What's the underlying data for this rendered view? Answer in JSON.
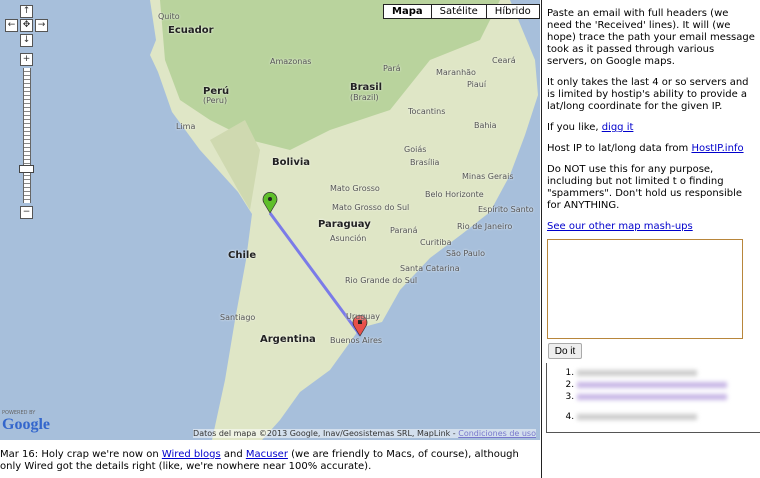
{
  "map": {
    "type_buttons": [
      "Mapa",
      "Satélite",
      "Híbrido"
    ],
    "active_type": "Mapa",
    "labels": [
      {
        "text": "Quito",
        "big": false
      },
      {
        "text": "Ecuador",
        "big": true
      },
      {
        "text": "Perú",
        "big": true
      },
      {
        "text": "(Peru)",
        "big": false
      },
      {
        "text": "Lima",
        "big": false
      },
      {
        "text": "Bolivia",
        "big": true
      },
      {
        "text": "Brasil",
        "big": true
      },
      {
        "text": "(Brazil)",
        "big": false
      },
      {
        "text": "Paraguay",
        "big": true
      },
      {
        "text": "Chile",
        "big": true
      },
      {
        "text": "Argentina",
        "big": true
      },
      {
        "text": "Uruguay",
        "big": false
      },
      {
        "text": "Buenos Aires",
        "big": false
      },
      {
        "text": "Santiago",
        "big": false
      },
      {
        "text": "Amazonas",
        "big": false
      },
      {
        "text": "Pará",
        "big": false
      },
      {
        "text": "Maranhão",
        "big": false
      },
      {
        "text": "Ceará",
        "big": false
      },
      {
        "text": "Piauí",
        "big": false
      },
      {
        "text": "Tocantins",
        "big": false
      },
      {
        "text": "Bahia",
        "big": false
      },
      {
        "text": "Goiás",
        "big": false
      },
      {
        "text": "Brasília",
        "big": false
      },
      {
        "text": "Minas Gerais",
        "big": false
      },
      {
        "text": "Belo Horizonte",
        "big": false
      },
      {
        "text": "Mato Grosso",
        "big": false
      },
      {
        "text": "Asunción",
        "big": false
      },
      {
        "text": "São Paulo",
        "big": false
      },
      {
        "text": "Curitiba",
        "big": false
      },
      {
        "text": "Rio de Janeiro",
        "big": false
      },
      {
        "text": "Espírito Santo",
        "big": false
      },
      {
        "text": "Rio Grande do Sul",
        "big": false
      },
      {
        "text": "Santa Catarina",
        "big": false
      },
      {
        "text": "Paraná",
        "big": false
      },
      {
        "text": "Mato Grosso do Sul",
        "big": false
      }
    ],
    "attribution": "Datos del mapa ©2013 Google, Inav/Geosistemas SRL, MapLink - ",
    "terms_link": "Condiciones de uso",
    "logo_powered": "POWERED BY",
    "logo_text": "Google",
    "route_color": "#7b7be8",
    "start_marker_color": "#5fbf2a",
    "end_marker_color": "#e8504a",
    "zoom_fraction": 0.25
  },
  "side": {
    "intro": "Paste an email with full headers (we need the 'Received' lines). It will (we hope) trace the path your email message took as it passed through various servers, on Google maps.",
    "limits": "It only takes the last 4 or so servers and is limited by hostip's ability to provide a lat/long coordinate for the given IP.",
    "digg_prefix": "If you like, ",
    "digg_link": "digg it",
    "hostip_prefix": "Host IP to lat/long data from ",
    "hostip_link": "HostIP.info",
    "disclaimer": "Do NOT use this for any purpose, including but not limited t o finding \"spammers\". Don't hold us responsible for ANYTHING.",
    "mashups_link": "See our other map mash-ups",
    "email_value": "",
    "doit_label": "Do it"
  },
  "footer": {
    "prefix": "Mar 16: Holy crap we're now on ",
    "wired_link": "Wired blogs",
    "and": " and ",
    "macuser_link": "Macuser",
    "suffix": " (we are friendly to Macs, of course), although only Wired got the details right (like, we're nowhere near 100% accurate)."
  }
}
